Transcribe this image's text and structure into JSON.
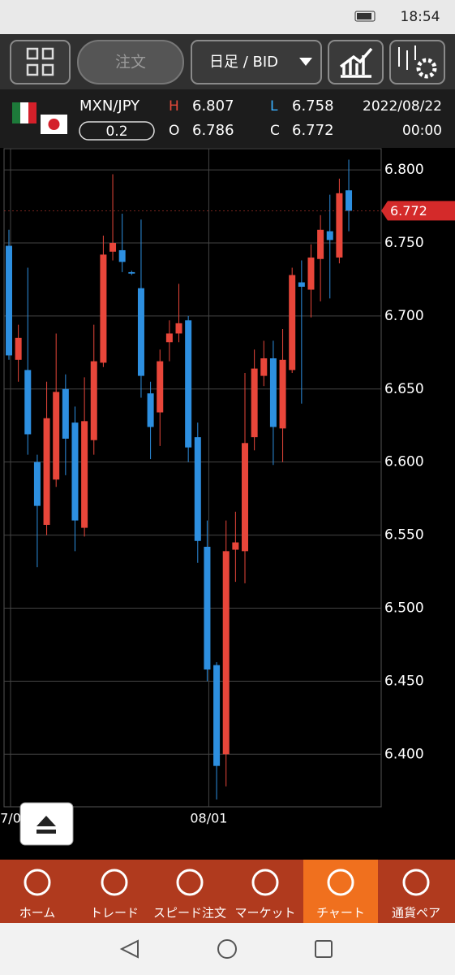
{
  "status_bar": {
    "time": "18:54"
  },
  "toolbar": {
    "order_button": "注文",
    "timeframe": "日足 / BID"
  },
  "quote": {
    "pair": "MXN/JPY",
    "spread": "0.2",
    "high_label": "H",
    "high": "6.807",
    "low_label": "L",
    "low": "6.758",
    "open_label": "O",
    "open": "6.786",
    "close_label": "C",
    "close": "6.772",
    "date": "2022/08/22",
    "time": "00:00"
  },
  "chart_data": {
    "type": "candlestick",
    "categories": [
      "7/0",
      null,
      null,
      null,
      null,
      null,
      null,
      null,
      null,
      null,
      null,
      null,
      null,
      null,
      null,
      null,
      null,
      null,
      null,
      null,
      null,
      "08/01",
      null,
      null,
      null,
      null,
      null,
      null,
      null,
      null,
      null,
      null,
      null,
      null,
      null,
      null,
      null
    ],
    "open": [
      6.748,
      6.67,
      6.663,
      6.6,
      6.557,
      6.588,
      6.65,
      6.627,
      6.555,
      6.615,
      6.668,
      6.744,
      6.745,
      6.73,
      6.719,
      6.647,
      6.634,
      6.682,
      6.688,
      6.697,
      6.617,
      6.542,
      6.461,
      6.4,
      6.54,
      6.539,
      6.617,
      6.659,
      6.671,
      6.623,
      6.663,
      6.723,
      6.718,
      6.739,
      6.758,
      6.74,
      6.786
    ],
    "high": [
      6.759,
      6.694,
      6.733,
      6.605,
      6.655,
      6.688,
      6.66,
      6.638,
      6.658,
      6.694,
      6.755,
      6.797,
      6.77,
      6.731,
      6.766,
      6.655,
      6.677,
      6.697,
      6.722,
      6.7,
      6.627,
      6.56,
      6.463,
      6.56,
      6.566,
      6.661,
      6.677,
      6.683,
      6.683,
      6.691,
      6.733,
      6.738,
      6.749,
      6.769,
      6.783,
      6.794,
      6.807
    ],
    "low": [
      6.67,
      6.655,
      6.605,
      6.528,
      6.55,
      6.583,
      6.591,
      6.539,
      6.549,
      6.605,
      6.665,
      6.738,
      6.73,
      6.728,
      6.644,
      6.602,
      6.611,
      6.669,
      6.682,
      6.6,
      6.531,
      6.45,
      6.369,
      6.378,
      6.518,
      6.517,
      6.608,
      6.652,
      6.598,
      6.6,
      6.661,
      6.64,
      6.699,
      6.71,
      6.712,
      6.736,
      6.758
    ],
    "close": [
      6.673,
      6.685,
      6.619,
      6.57,
      6.63,
      6.648,
      6.616,
      6.56,
      6.628,
      6.669,
      6.742,
      6.75,
      6.737,
      6.729,
      6.659,
      6.624,
      6.669,
      6.688,
      6.695,
      6.61,
      6.546,
      6.458,
      6.392,
      6.539,
      6.545,
      6.613,
      6.664,
      6.671,
      6.624,
      6.67,
      6.728,
      6.72,
      6.74,
      6.759,
      6.752,
      6.784,
      6.772
    ],
    "up_color": "#e8463a",
    "down_color": "#2d8fe0",
    "last_price": {
      "value": 6.772,
      "label": "6.772"
    },
    "ylim": [
      6.364,
      6.8145
    ],
    "yticks": [
      {
        "value": 6.4,
        "label": "6.400"
      },
      {
        "value": 6.45,
        "label": "6.450"
      },
      {
        "value": 6.5,
        "label": "6.500"
      },
      {
        "value": 6.55,
        "label": "6.550"
      },
      {
        "value": 6.6,
        "label": "6.600"
      },
      {
        "value": 6.65,
        "label": "6.650"
      },
      {
        "value": 6.7,
        "label": "6.700"
      },
      {
        "value": 6.75,
        "label": "6.750"
      },
      {
        "value": 6.8,
        "label": "6.800"
      }
    ],
    "grid": true
  },
  "nav": {
    "items": [
      "ホーム",
      "トレード",
      "スピード注文",
      "マーケット",
      "チャート",
      "通貨ペア"
    ]
  }
}
